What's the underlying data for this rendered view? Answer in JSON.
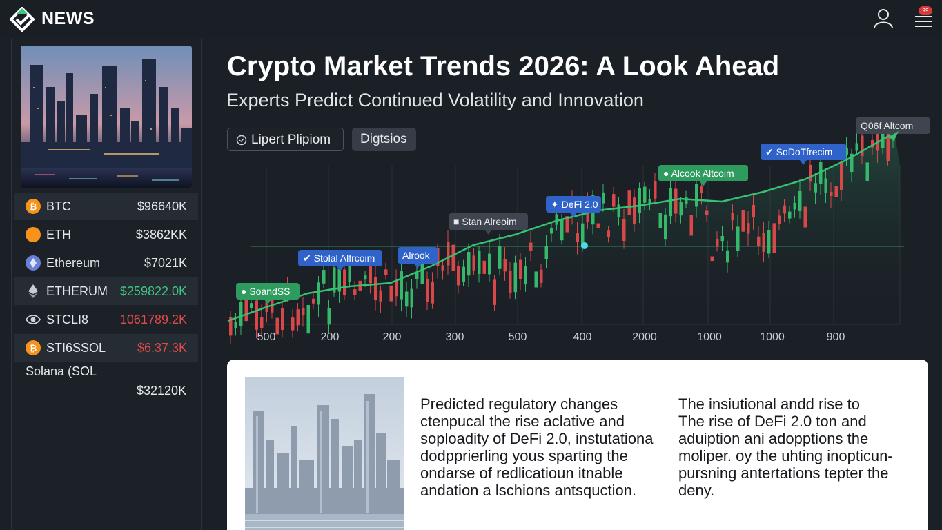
{
  "header": {
    "brand": "NEWS",
    "notification_count": "99"
  },
  "sidebar": {
    "tickers": [
      {
        "symbol": "BTC",
        "price": "$96640K",
        "trend": "neutral",
        "icon": "bitcoin-icon",
        "color": "#f7931a"
      },
      {
        "symbol": "ETH",
        "price": "$3862KK",
        "trend": "neutral",
        "icon": "coin-icon",
        "color": "#f7931a"
      },
      {
        "symbol": "Ethereum",
        "price": "$7021K",
        "trend": "neutral",
        "icon": "ethereum-icon",
        "color": "#6a7fd6"
      },
      {
        "symbol": "ETHERUM",
        "price": "$259822.0K",
        "trend": "up",
        "icon": "ethereum-diamond-icon",
        "color": "#c9cdd2"
      },
      {
        "symbol": "STCLI8",
        "price": "1061789.2K",
        "trend": "down",
        "icon": "eye-icon",
        "color": "#cfd3d8"
      },
      {
        "symbol": "STI6SSOL",
        "price": "$6.37.3K",
        "trend": "down",
        "icon": "bitcoin-icon",
        "color": "#f7931a"
      }
    ],
    "solana": {
      "name": "Solana (SOL",
      "price": "$32120K"
    }
  },
  "article": {
    "headline": "Crypto Market Trends 2026: A Look Ahead",
    "subheadline": "Experts Predict Continued Volatility and Innovation",
    "filters": [
      {
        "label": "Lipert Plipiom",
        "icon": "clock-icon"
      },
      {
        "label": "Digtsios"
      }
    ],
    "column_1": [
      "Predicted regulatory changes",
      "ctenpucal the rise aclative and",
      "soploadity of DeFi 2.0, instutationa",
      "dodpprierling yous sparting the",
      "ondarse of redlicatioun itnable",
      "andation a lschions antsquction."
    ],
    "column_2": [
      "The insiutional andd rise to",
      "The rise of DeFi 2.0 ton and",
      "aduiption ani adopptions the",
      "moliper. oy the uhting inopticun-",
      "pursning antertations tepter the",
      "deny."
    ]
  },
  "chart_data": {
    "type": "line",
    "x_tick_labels": [
      "500",
      "200",
      "200",
      "300",
      "500",
      "400",
      "2000",
      "1000",
      "1000",
      "900"
    ],
    "trend_color": "#38c172",
    "up_color": "#36b86b",
    "down_color": "#d94848",
    "annotations": [
      {
        "label": "SoandSS",
        "icon": "dot-icon",
        "style": "green"
      },
      {
        "label": "Stolal Alfrcoim",
        "icon": "check-icon",
        "style": "blue"
      },
      {
        "label": "Alrook",
        "style": "blue"
      },
      {
        "label": "Stan Alreoim",
        "icon": "square-icon",
        "style": "gray"
      },
      {
        "label": "DeFi 2.0",
        "icon": "plus-icon",
        "style": "blue"
      },
      {
        "label": "Alcook Altcoim",
        "icon": "dot-icon",
        "style": "green"
      },
      {
        "label": "SoDoTfrecim",
        "icon": "check-icon",
        "style": "blue"
      },
      {
        "label": "Q06f Altcom",
        "style": "gray"
      }
    ]
  }
}
